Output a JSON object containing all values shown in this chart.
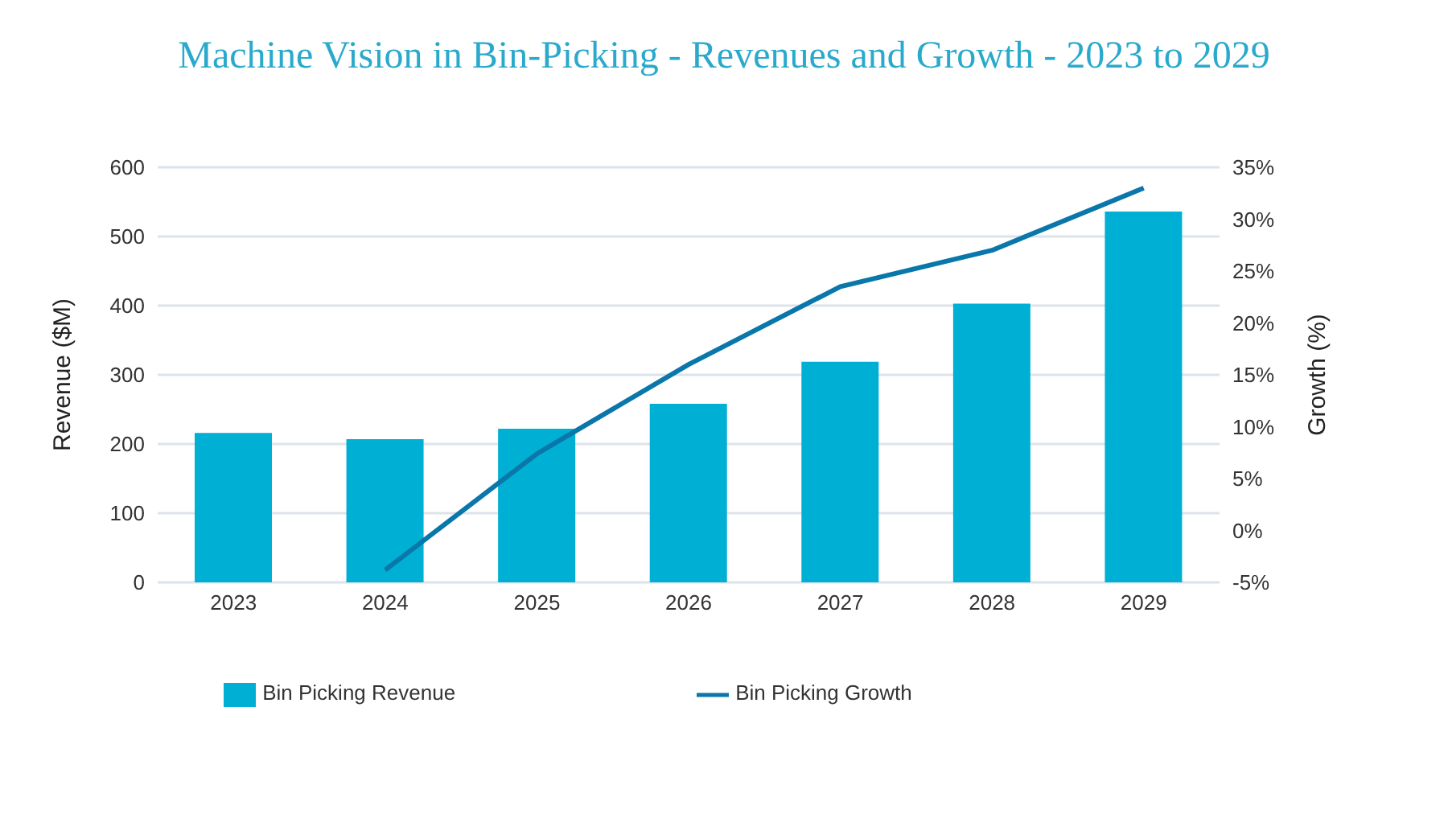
{
  "chart_data": {
    "type": "bar",
    "title": "Machine Vision in Bin-Picking - Revenues and Growth - 2023 to 2029",
    "ylabel": "Revenue ($M)",
    "y2label": "Growth (%)",
    "categories": [
      "2023",
      "2024",
      "2025",
      "2026",
      "2027",
      "2028",
      "2029"
    ],
    "series": [
      {
        "name": "Bin Picking Revenue",
        "color": "#00b0d4",
        "values": [
          216,
          207,
          222,
          258,
          319,
          403,
          536
        ]
      },
      {
        "name": "Bin Picking Growth",
        "type": "line",
        "axis": "y2",
        "color": "#0a77aa",
        "values": [
          null,
          -3.8,
          7.4,
          16,
          23.5,
          27,
          33
        ]
      }
    ],
    "ylim": [
      0,
      600
    ],
    "yticks": [
      0,
      100,
      200,
      300,
      400,
      500,
      600
    ],
    "y2lim": [
      -5,
      35
    ],
    "y2ticks": [
      {
        "value": -5,
        "label": "-5%"
      },
      {
        "value": 0,
        "label": "0%"
      },
      {
        "value": 5,
        "label": "5%"
      },
      {
        "value": 10,
        "label": "10%"
      },
      {
        "value": 15,
        "label": "15%"
      },
      {
        "value": 20,
        "label": "20%"
      },
      {
        "value": 25,
        "label": "25%"
      },
      {
        "value": 30,
        "label": "30%"
      },
      {
        "value": 35,
        "label": "35%"
      }
    ],
    "grid": "y",
    "legend": "bottom",
    "marker": "none"
  }
}
